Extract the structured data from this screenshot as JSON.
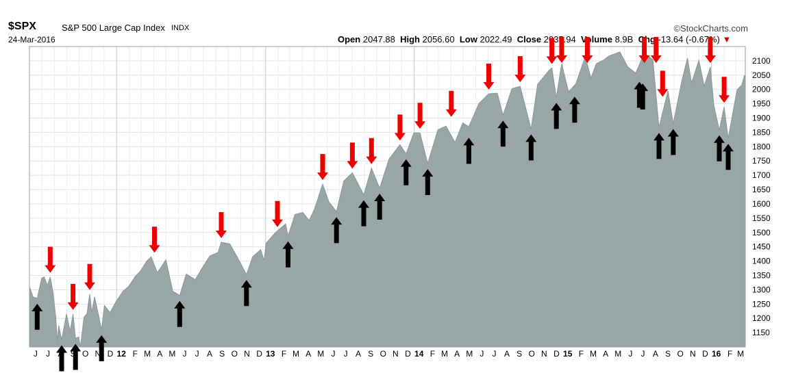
{
  "header": {
    "ticker": "$SPX",
    "index_name": "S&P 500 Large Cap Index",
    "index_type": "INDX",
    "date": "24-Mar-2016",
    "brand": "©StockCharts.com",
    "quote": {
      "open_label": "Open",
      "open": "2047.88",
      "high_label": "High",
      "high": "2056.60",
      "low_label": "Low",
      "low": "2022.49",
      "close_label": "Close",
      "close": "2035.94",
      "volume_label": "Volume",
      "volume": "8.9B",
      "chg_label": "Chg",
      "chg": "-13.64 (-0.67%)",
      "chg_arrow": "▼"
    }
  },
  "chart_data": {
    "type": "area",
    "title": "",
    "ylim": [
      1100,
      2150
    ],
    "y_ticks": [
      1150,
      1200,
      1250,
      1300,
      1350,
      1400,
      1450,
      1500,
      1550,
      1600,
      1650,
      1700,
      1750,
      1800,
      1850,
      1900,
      1950,
      2000,
      2050,
      2100
    ],
    "x_range": [
      "2011-06-01",
      "2016-03-24"
    ],
    "x_ticks": [
      {
        "label": "J",
        "date": "2011-06-01"
      },
      {
        "label": "J",
        "date": "2011-07-01"
      },
      {
        "label": "A",
        "date": "2011-08-01"
      },
      {
        "label": "S",
        "date": "2011-09-01"
      },
      {
        "label": "O",
        "date": "2011-10-01"
      },
      {
        "label": "N",
        "date": "2011-11-01"
      },
      {
        "label": "D",
        "date": "2011-12-01"
      },
      {
        "label": "12",
        "date": "2012-01-01",
        "year": true
      },
      {
        "label": "F",
        "date": "2012-02-01"
      },
      {
        "label": "M",
        "date": "2012-03-01"
      },
      {
        "label": "A",
        "date": "2012-04-01"
      },
      {
        "label": "M",
        "date": "2012-05-01"
      },
      {
        "label": "J",
        "date": "2012-06-01"
      },
      {
        "label": "J",
        "date": "2012-07-01"
      },
      {
        "label": "A",
        "date": "2012-08-01"
      },
      {
        "label": "S",
        "date": "2012-09-01"
      },
      {
        "label": "O",
        "date": "2012-10-01"
      },
      {
        "label": "N",
        "date": "2012-11-01"
      },
      {
        "label": "D",
        "date": "2012-12-01"
      },
      {
        "label": "13",
        "date": "2013-01-01",
        "year": true
      },
      {
        "label": "F",
        "date": "2013-02-01"
      },
      {
        "label": "M",
        "date": "2013-03-01"
      },
      {
        "label": "A",
        "date": "2013-04-01"
      },
      {
        "label": "M",
        "date": "2013-05-01"
      },
      {
        "label": "J",
        "date": "2013-06-01"
      },
      {
        "label": "J",
        "date": "2013-07-01"
      },
      {
        "label": "A",
        "date": "2013-08-01"
      },
      {
        "label": "S",
        "date": "2013-09-01"
      },
      {
        "label": "O",
        "date": "2013-10-01"
      },
      {
        "label": "N",
        "date": "2013-11-01"
      },
      {
        "label": "D",
        "date": "2013-12-01"
      },
      {
        "label": "14",
        "date": "2014-01-01",
        "year": true
      },
      {
        "label": "F",
        "date": "2014-02-01"
      },
      {
        "label": "M",
        "date": "2014-03-01"
      },
      {
        "label": "A",
        "date": "2014-04-01"
      },
      {
        "label": "M",
        "date": "2014-05-01"
      },
      {
        "label": "J",
        "date": "2014-06-01"
      },
      {
        "label": "J",
        "date": "2014-07-01"
      },
      {
        "label": "A",
        "date": "2014-08-01"
      },
      {
        "label": "S",
        "date": "2014-09-01"
      },
      {
        "label": "O",
        "date": "2014-10-01"
      },
      {
        "label": "N",
        "date": "2014-11-01"
      },
      {
        "label": "D",
        "date": "2014-12-01"
      },
      {
        "label": "15",
        "date": "2015-01-01",
        "year": true
      },
      {
        "label": "F",
        "date": "2015-02-01"
      },
      {
        "label": "M",
        "date": "2015-03-01"
      },
      {
        "label": "A",
        "date": "2015-04-01"
      },
      {
        "label": "M",
        "date": "2015-05-01"
      },
      {
        "label": "J",
        "date": "2015-06-01"
      },
      {
        "label": "J",
        "date": "2015-07-01"
      },
      {
        "label": "A",
        "date": "2015-08-01"
      },
      {
        "label": "S",
        "date": "2015-09-01"
      },
      {
        "label": "O",
        "date": "2015-10-01"
      },
      {
        "label": "N",
        "date": "2015-11-01"
      },
      {
        "label": "D",
        "date": "2015-12-01"
      },
      {
        "label": "16",
        "date": "2016-01-01",
        "year": true
      },
      {
        "label": "F",
        "date": "2016-02-01"
      },
      {
        "label": "M",
        "date": "2016-03-01"
      }
    ],
    "series": [
      {
        "fill": "#98a6a6",
        "stroke": "#8a9898",
        "points": [
          [
            "2011-06-01",
            1310
          ],
          [
            "2011-06-10",
            1275
          ],
          [
            "2011-06-20",
            1270
          ],
          [
            "2011-07-01",
            1340
          ],
          [
            "2011-07-07",
            1345
          ],
          [
            "2011-07-15",
            1315
          ],
          [
            "2011-07-22",
            1345
          ],
          [
            "2011-07-29",
            1290
          ],
          [
            "2011-08-05",
            1200
          ],
          [
            "2011-08-08",
            1120
          ],
          [
            "2011-08-12",
            1175
          ],
          [
            "2011-08-19",
            1125
          ],
          [
            "2011-08-31",
            1215
          ],
          [
            "2011-09-09",
            1155
          ],
          [
            "2011-09-16",
            1215
          ],
          [
            "2011-09-22",
            1130
          ],
          [
            "2011-09-30",
            1135
          ],
          [
            "2011-10-04",
            1100
          ],
          [
            "2011-10-13",
            1205
          ],
          [
            "2011-10-20",
            1215
          ],
          [
            "2011-10-27",
            1285
          ],
          [
            "2011-11-01",
            1220
          ],
          [
            "2011-11-08",
            1275
          ],
          [
            "2011-11-17",
            1215
          ],
          [
            "2011-11-25",
            1160
          ],
          [
            "2011-12-02",
            1245
          ],
          [
            "2011-12-16",
            1220
          ],
          [
            "2011-12-30",
            1257
          ],
          [
            "2012-01-17",
            1295
          ],
          [
            "2012-01-31",
            1312
          ],
          [
            "2012-02-15",
            1345
          ],
          [
            "2012-02-29",
            1366
          ],
          [
            "2012-03-15",
            1400
          ],
          [
            "2012-03-26",
            1415
          ],
          [
            "2012-04-10",
            1360
          ],
          [
            "2012-04-20",
            1380
          ],
          [
            "2012-05-01",
            1405
          ],
          [
            "2012-05-18",
            1295
          ],
          [
            "2012-06-04",
            1280
          ],
          [
            "2012-06-20",
            1355
          ],
          [
            "2012-07-12",
            1335
          ],
          [
            "2012-07-31",
            1380
          ],
          [
            "2012-08-17",
            1418
          ],
          [
            "2012-09-06",
            1430
          ],
          [
            "2012-09-14",
            1466
          ],
          [
            "2012-10-05",
            1460
          ],
          [
            "2012-10-25",
            1410
          ],
          [
            "2012-11-15",
            1353
          ],
          [
            "2012-11-30",
            1415
          ],
          [
            "2012-12-20",
            1440
          ],
          [
            "2012-12-28",
            1402
          ],
          [
            "2013-01-02",
            1462
          ],
          [
            "2013-01-25",
            1500
          ],
          [
            "2013-02-19",
            1530
          ],
          [
            "2013-02-25",
            1488
          ],
          [
            "2013-03-14",
            1563
          ],
          [
            "2013-04-02",
            1570
          ],
          [
            "2013-04-18",
            1542
          ],
          [
            "2013-05-01",
            1582
          ],
          [
            "2013-05-21",
            1669
          ],
          [
            "2013-06-05",
            1608
          ],
          [
            "2013-06-24",
            1573
          ],
          [
            "2013-07-12",
            1680
          ],
          [
            "2013-08-02",
            1709
          ],
          [
            "2013-08-30",
            1632
          ],
          [
            "2013-09-18",
            1725
          ],
          [
            "2013-10-08",
            1655
          ],
          [
            "2013-10-31",
            1757
          ],
          [
            "2013-11-27",
            1807
          ],
          [
            "2013-12-12",
            1775
          ],
          [
            "2013-12-31",
            1848
          ],
          [
            "2014-01-15",
            1848
          ],
          [
            "2014-02-03",
            1741
          ],
          [
            "2014-02-28",
            1859
          ],
          [
            "2014-03-20",
            1872
          ],
          [
            "2014-04-11",
            1815
          ],
          [
            "2014-04-30",
            1883
          ],
          [
            "2014-05-15",
            1870
          ],
          [
            "2014-06-09",
            1951
          ],
          [
            "2014-07-03",
            1985
          ],
          [
            "2014-07-24",
            1987
          ],
          [
            "2014-08-07",
            1910
          ],
          [
            "2014-08-29",
            2003
          ],
          [
            "2014-09-18",
            2011
          ],
          [
            "2014-10-15",
            1862
          ],
          [
            "2014-10-31",
            2018
          ],
          [
            "2014-11-28",
            2067
          ],
          [
            "2014-12-05",
            2075
          ],
          [
            "2014-12-16",
            1972
          ],
          [
            "2014-12-29",
            2090
          ],
          [
            "2015-01-15",
            1992
          ],
          [
            "2015-02-02",
            2020
          ],
          [
            "2015-02-25",
            2115
          ],
          [
            "2015-03-11",
            2040
          ],
          [
            "2015-03-24",
            2090
          ],
          [
            "2015-04-10",
            2102
          ],
          [
            "2015-04-24",
            2117
          ],
          [
            "2015-05-21",
            2131
          ],
          [
            "2015-06-09",
            2080
          ],
          [
            "2015-06-29",
            2057
          ],
          [
            "2015-07-20",
            2128
          ],
          [
            "2015-08-10",
            2104
          ],
          [
            "2015-08-25",
            1867
          ],
          [
            "2015-09-16",
            1995
          ],
          [
            "2015-09-29",
            1881
          ],
          [
            "2015-10-20",
            2030
          ],
          [
            "2015-11-03",
            2110
          ],
          [
            "2015-11-13",
            2023
          ],
          [
            "2015-12-01",
            2102
          ],
          [
            "2015-12-14",
            2012
          ],
          [
            "2015-12-29",
            2078
          ],
          [
            "2016-01-07",
            1943
          ],
          [
            "2016-01-20",
            1859
          ],
          [
            "2016-02-01",
            1939
          ],
          [
            "2016-02-11",
            1829
          ],
          [
            "2016-02-26",
            1948
          ],
          [
            "2016-03-04",
            1999
          ],
          [
            "2016-03-15",
            2015
          ],
          [
            "2016-03-22",
            2049
          ],
          [
            "2016-03-24",
            2036
          ]
        ]
      }
    ],
    "annotations": {
      "down_arrows": [
        {
          "date": "2011-07-22",
          "value": 1345,
          "color": "#ee0000"
        },
        {
          "date": "2011-09-16",
          "value": 1215,
          "color": "#ee0000"
        },
        {
          "date": "2011-10-27",
          "value": 1285,
          "color": "#ee0000"
        },
        {
          "date": "2012-04-03",
          "value": 1415,
          "color": "#ee0000"
        },
        {
          "date": "2012-09-14",
          "value": 1466,
          "color": "#ee0000"
        },
        {
          "date": "2013-01-30",
          "value": 1505,
          "color": "#ee0000"
        },
        {
          "date": "2013-05-21",
          "value": 1669,
          "color": "#ee0000"
        },
        {
          "date": "2013-08-02",
          "value": 1709,
          "color": "#ee0000"
        },
        {
          "date": "2013-09-18",
          "value": 1725,
          "color": "#ee0000"
        },
        {
          "date": "2013-11-27",
          "value": 1807,
          "color": "#ee0000"
        },
        {
          "date": "2014-01-15",
          "value": 1848,
          "color": "#ee0000"
        },
        {
          "date": "2014-04-02",
          "value": 1890,
          "color": "#ee0000"
        },
        {
          "date": "2014-07-03",
          "value": 1985,
          "color": "#ee0000"
        },
        {
          "date": "2014-09-18",
          "value": 2011,
          "color": "#ee0000"
        },
        {
          "date": "2014-12-05",
          "value": 2075,
          "color": "#ee0000"
        },
        {
          "date": "2014-12-29",
          "value": 2090,
          "color": "#ee0000"
        },
        {
          "date": "2015-03-02",
          "value": 2117,
          "color": "#ee0000"
        },
        {
          "date": "2015-07-20",
          "value": 2128,
          "color": "#ee0000"
        },
        {
          "date": "2015-08-18",
          "value": 2102,
          "color": "#ee0000"
        },
        {
          "date": "2015-09-03",
          "value": 1960,
          "color": "#ee0000"
        },
        {
          "date": "2015-12-29",
          "value": 2078,
          "color": "#ee0000"
        },
        {
          "date": "2016-02-01",
          "value": 1939,
          "color": "#ee0000"
        }
      ],
      "up_arrows": [
        {
          "date": "2011-06-20",
          "value": 1270,
          "color": "#000000"
        },
        {
          "date": "2011-08-19",
          "value": 1125,
          "color": "#000000"
        },
        {
          "date": "2011-09-22",
          "value": 1130,
          "color": "#000000"
        },
        {
          "date": "2011-11-25",
          "value": 1160,
          "color": "#000000"
        },
        {
          "date": "2012-06-04",
          "value": 1280,
          "color": "#000000"
        },
        {
          "date": "2012-11-15",
          "value": 1353,
          "color": "#000000"
        },
        {
          "date": "2013-02-25",
          "value": 1488,
          "color": "#000000"
        },
        {
          "date": "2013-06-24",
          "value": 1573,
          "color": "#000000"
        },
        {
          "date": "2013-08-30",
          "value": 1632,
          "color": "#000000"
        },
        {
          "date": "2013-10-08",
          "value": 1655,
          "color": "#000000"
        },
        {
          "date": "2013-12-12",
          "value": 1775,
          "color": "#000000"
        },
        {
          "date": "2014-02-03",
          "value": 1741,
          "color": "#000000"
        },
        {
          "date": "2014-05-15",
          "value": 1850,
          "color": "#000000"
        },
        {
          "date": "2014-08-07",
          "value": 1910,
          "color": "#000000"
        },
        {
          "date": "2014-10-15",
          "value": 1862,
          "color": "#000000"
        },
        {
          "date": "2014-12-16",
          "value": 1972,
          "color": "#000000"
        },
        {
          "date": "2015-01-30",
          "value": 1994,
          "color": "#000000"
        },
        {
          "date": "2015-07-08",
          "value": 2046,
          "color": "#000000"
        },
        {
          "date": "2015-07-16",
          "value": 2040,
          "color": "#000000"
        },
        {
          "date": "2015-08-25",
          "value": 1867,
          "color": "#000000"
        },
        {
          "date": "2015-09-29",
          "value": 1881,
          "color": "#000000"
        },
        {
          "date": "2016-01-20",
          "value": 1859,
          "color": "#000000"
        },
        {
          "date": "2016-02-11",
          "value": 1829,
          "color": "#000000"
        }
      ]
    }
  }
}
